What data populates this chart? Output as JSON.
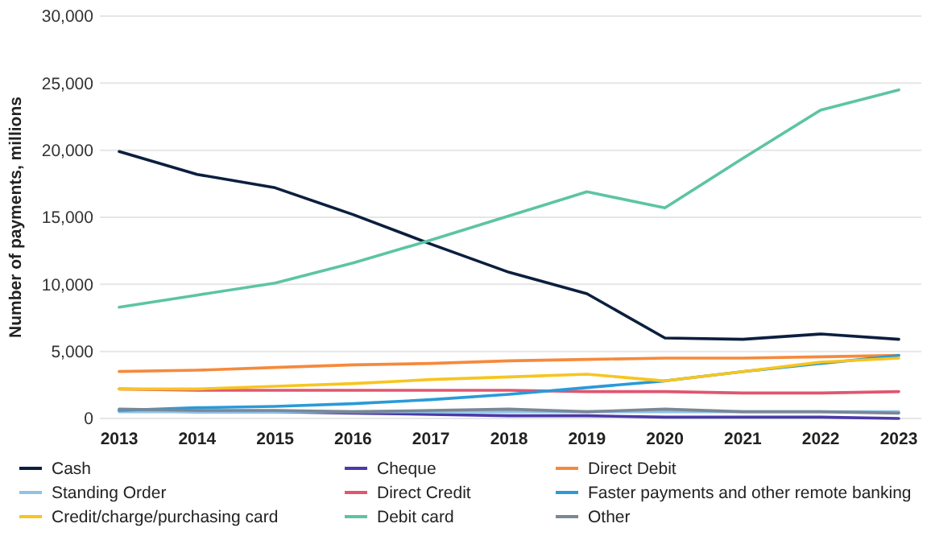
{
  "chart_data": {
    "type": "line",
    "ylabel": "Number of payments, millions",
    "categories": [
      "2013",
      "2014",
      "2015",
      "2016",
      "2017",
      "2018",
      "2019",
      "2020",
      "2021",
      "2022",
      "2023"
    ],
    "ylim": [
      0,
      30000
    ],
    "yticks": [
      0,
      {
        "value": 5000,
        "label": "5,000"
      },
      {
        "value": 10000,
        "label": "10,000"
      },
      {
        "value": 15000,
        "label": "15,000"
      },
      {
        "value": 20000,
        "label": "20,000"
      },
      {
        "value": 25000,
        "label": "25,000"
      },
      {
        "value": 30000,
        "label": "30,000"
      }
    ],
    "grid": "y",
    "legend": "bottom",
    "marker": "none",
    "line_style": "solid",
    "series": [
      {
        "name": "Cash",
        "color": "#0b1f3f",
        "values": [
          19900,
          18200,
          17200,
          15200,
          13000,
          10900,
          9300,
          6000,
          5900,
          6300,
          5900
        ]
      },
      {
        "name": "Cheque",
        "color": "#4a3ba8",
        "values": [
          600,
          500,
          500,
          400,
          300,
          200,
          200,
          100,
          100,
          100,
          0
        ]
      },
      {
        "name": "Direct Debit",
        "color": "#f58a3c",
        "values": [
          3500,
          3600,
          3800,
          4000,
          4100,
          4300,
          4400,
          4500,
          4500,
          4600,
          4700
        ]
      },
      {
        "name": "Standing Order",
        "color": "#8fc3e8",
        "values": [
          500,
          500,
          500,
          500,
          500,
          500,
          500,
          500,
          500,
          500,
          500
        ]
      },
      {
        "name": "Direct Credit",
        "color": "#e0566f",
        "values": [
          2200,
          2100,
          2100,
          2100,
          2100,
          2100,
          2000,
          2000,
          1900,
          1900,
          2000
        ]
      },
      {
        "name": "Faster payments and other remote banking",
        "color": "#2a9ad8",
        "values": [
          600,
          800,
          900,
          1100,
          1400,
          1800,
          2300,
          2800,
          3500,
          4100,
          4700
        ]
      },
      {
        "name": "Credit/charge/purchasing card",
        "color": "#f7c51e",
        "values": [
          2200,
          2200,
          2400,
          2600,
          2900,
          3100,
          3300,
          2800,
          3500,
          4200,
          4500
        ]
      },
      {
        "name": "Debit card",
        "color": "#5cc4a4",
        "values": [
          8300,
          9200,
          10100,
          11600,
          13300,
          15100,
          16900,
          15700,
          19400,
          23000,
          24500
        ]
      },
      {
        "name": "Other",
        "color": "#7a8796",
        "values": [
          700,
          600,
          600,
          500,
          600,
          700,
          500,
          700,
          500,
          500,
          400
        ]
      }
    ]
  }
}
